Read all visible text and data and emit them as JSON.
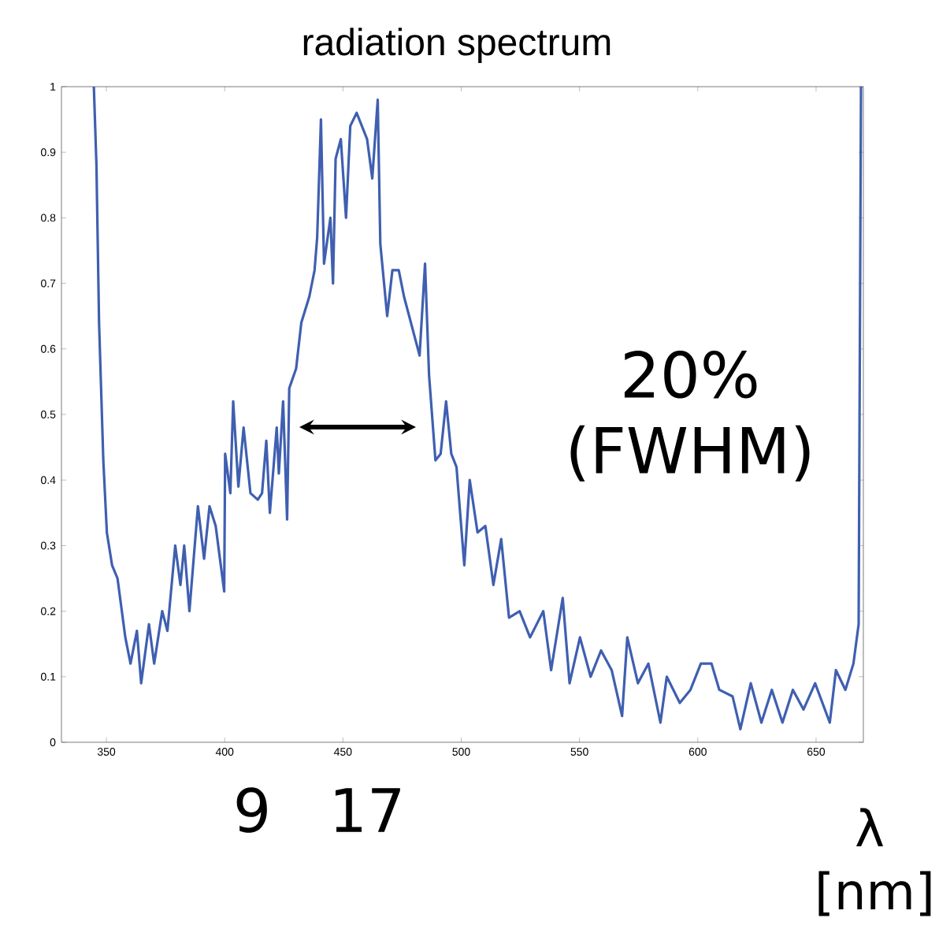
{
  "chart_data": {
    "type": "line",
    "title": "radiation spectrum",
    "xlabel": "λ [nm]",
    "annotations": [
      "20% (FWHM)",
      "9",
      "17"
    ],
    "xlim": [
      331,
      670
    ],
    "ylim": [
      0,
      1
    ],
    "xticks": [
      350,
      400,
      450,
      500,
      550,
      600,
      650
    ],
    "yticks": [
      0,
      0.1,
      0.2,
      0.3,
      0.4,
      0.5,
      0.6,
      0.7,
      0.8,
      0.9,
      1
    ],
    "marker": "none",
    "line_style": "solid",
    "series": [
      {
        "color": "#3f5fb0",
        "x": [
          344.7,
          345.8,
          346.9,
          348.7,
          350.2,
          352.4,
          354.7,
          358,
          360.2,
          362.9,
          364.7,
          368,
          370.2,
          373.6,
          375.8,
          379.1,
          381.3,
          382.9,
          385.1,
          388.7,
          391.3,
          393.6,
          396.2,
          398,
          399.8,
          400.2,
          402.4,
          403.6,
          405.8,
          408,
          410.9,
          414,
          415.8,
          417.6,
          419.1,
          422,
          422.9,
          424.7,
          426.4,
          427.3,
          430.2,
          432.4,
          435.8,
          438,
          439.1,
          440.7,
          442,
          444.7,
          445.8,
          446.9,
          449.1,
          451.3,
          453.1,
          455.8,
          458,
          460.2,
          462.4,
          464.7,
          465.8,
          468.7,
          470.9,
          473.6,
          475.8,
          480.2,
          482.4,
          484.7,
          486.4,
          489.1,
          491.3,
          493.6,
          495.8,
          498,
          501.3,
          503.6,
          506.9,
          510.2,
          513.6,
          516.9,
          520.2,
          524.7,
          529.1,
          534.7,
          538,
          542.9,
          545.8,
          550.2,
          554.7,
          559.1,
          563.6,
          568,
          570.2,
          574.7,
          579.1,
          584.2,
          586.9,
          592.4,
          596.9,
          601.3,
          605.8,
          609.1,
          614.7,
          618,
          622.4,
          626.9,
          631.3,
          635.8,
          640.2,
          644.7,
          649.6,
          655.8,
          658.4,
          662.4,
          665.8,
          668,
          669
        ],
        "values": [
          1.0,
          0.88,
          0.64,
          0.43,
          0.32,
          0.27,
          0.25,
          0.16,
          0.12,
          0.17,
          0.09,
          0.18,
          0.12,
          0.2,
          0.17,
          0.3,
          0.24,
          0.3,
          0.2,
          0.36,
          0.28,
          0.36,
          0.33,
          0.28,
          0.23,
          0.44,
          0.38,
          0.52,
          0.39,
          0.48,
          0.38,
          0.37,
          0.38,
          0.46,
          0.35,
          0.48,
          0.41,
          0.52,
          0.34,
          0.54,
          0.57,
          0.64,
          0.68,
          0.72,
          0.77,
          0.95,
          0.73,
          0.8,
          0.7,
          0.89,
          0.92,
          0.8,
          0.94,
          0.96,
          0.94,
          0.92,
          0.86,
          0.98,
          0.76,
          0.65,
          0.72,
          0.72,
          0.68,
          0.62,
          0.59,
          0.73,
          0.56,
          0.43,
          0.44,
          0.52,
          0.44,
          0.42,
          0.27,
          0.4,
          0.32,
          0.33,
          0.24,
          0.31,
          0.19,
          0.2,
          0.16,
          0.2,
          0.11,
          0.22,
          0.09,
          0.16,
          0.1,
          0.14,
          0.11,
          0.04,
          0.16,
          0.09,
          0.12,
          0.03,
          0.1,
          0.06,
          0.08,
          0.12,
          0.12,
          0.08,
          0.07,
          0.02,
          0.09,
          0.03,
          0.08,
          0.03,
          0.08,
          0.05,
          0.09,
          0.03,
          0.11,
          0.08,
          0.12,
          0.18,
          1.0
        ]
      }
    ]
  }
}
